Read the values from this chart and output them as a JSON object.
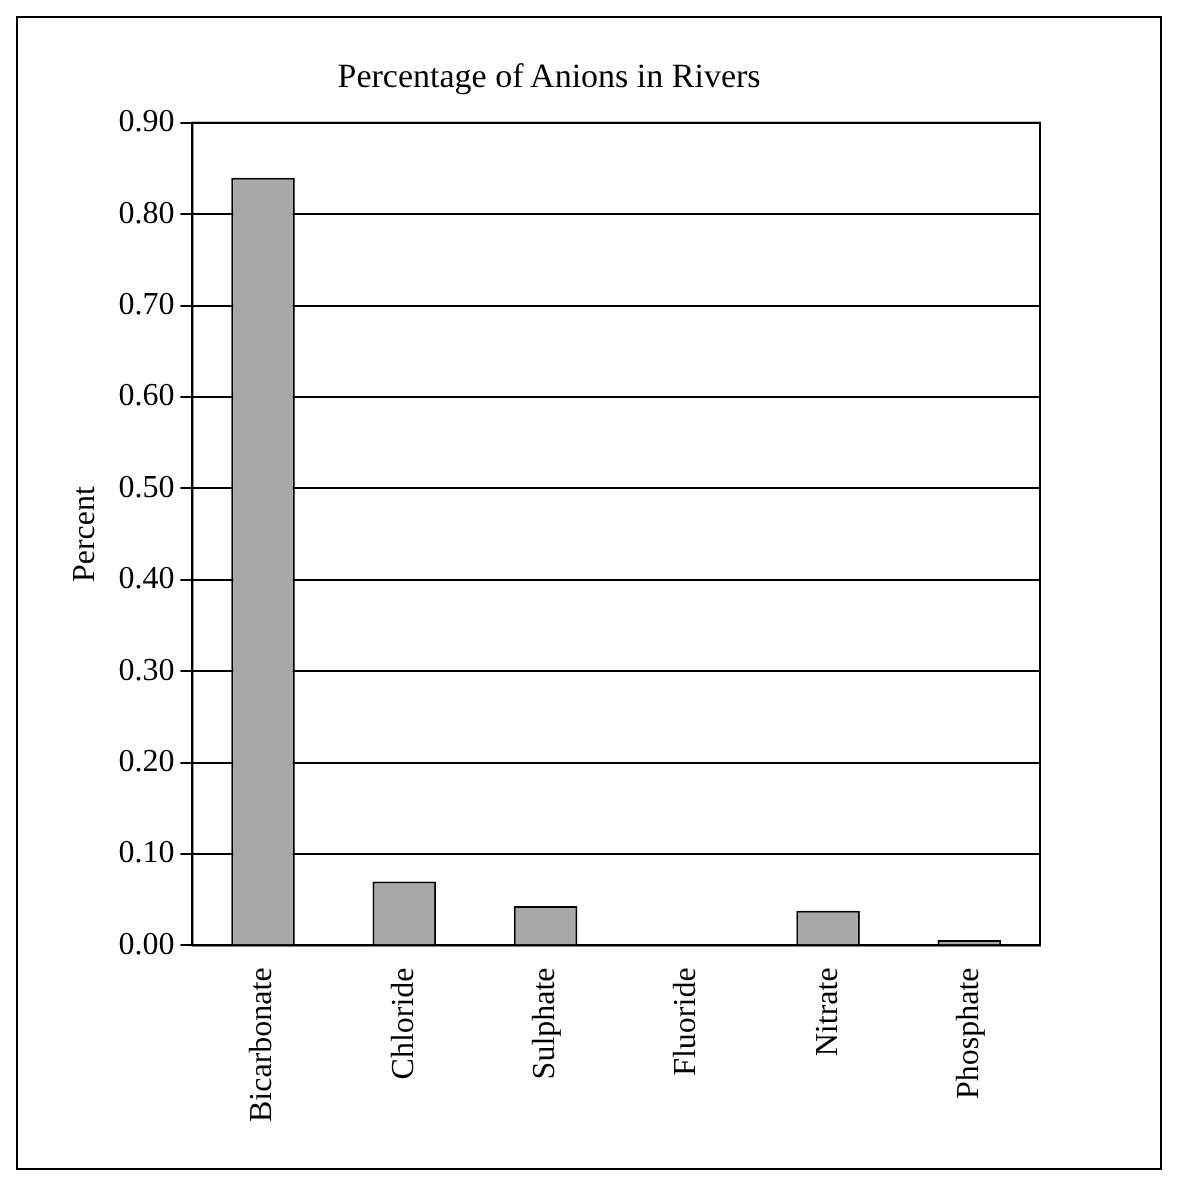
{
  "chart_data": {
    "type": "bar",
    "title": "Percentage of Anions in Rivers",
    "ylabel": "Percent",
    "categories": [
      "Bicarbonate",
      "Chloride",
      "Sulphate",
      "Fluoride",
      "Nitrate",
      "Phosphate"
    ],
    "values": [
      0.84,
      0.07,
      0.043,
      0,
      0.038,
      0.006
    ],
    "color": "#a8a8a8",
    "ylim": [
      0,
      0.9
    ],
    "yticks": [
      {
        "value": 0,
        "label": "0.00"
      },
      {
        "value": 0.1,
        "label": "0.10"
      },
      {
        "value": 0.2,
        "label": "0.20"
      },
      {
        "value": 0.3,
        "label": "0.30"
      },
      {
        "value": 0.4,
        "label": "0.40"
      },
      {
        "value": 0.5,
        "label": "0.50"
      },
      {
        "value": 0.6,
        "label": "0.60"
      },
      {
        "value": 0.7,
        "label": "0.70"
      },
      {
        "value": 0.8,
        "label": "0.80"
      },
      {
        "value": 0.9,
        "label": "0.90"
      }
    ],
    "grid": "y",
    "legend": false
  }
}
